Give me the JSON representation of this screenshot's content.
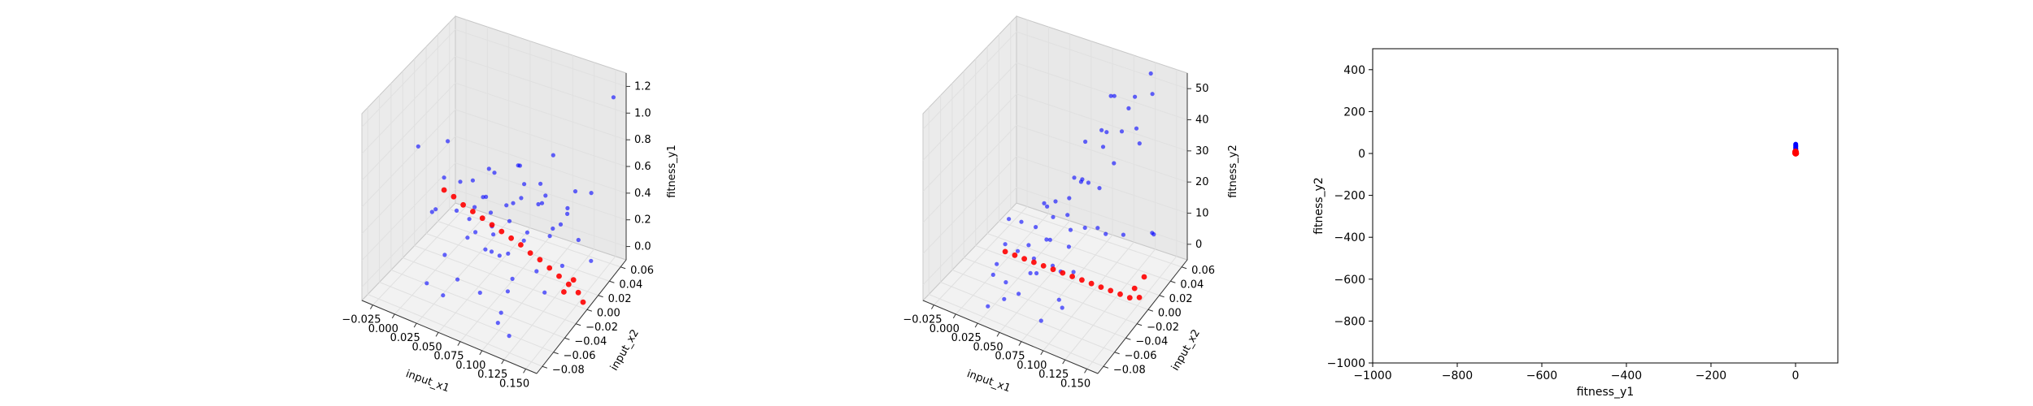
{
  "chart_data": [
    {
      "type": "scatter",
      "projection": "3d",
      "xlabel": "input_x1",
      "ylabel": "input_x2",
      "zlabel": "fitness_y1",
      "x_ticks": [
        "−0.025",
        "0.000",
        "0.025",
        "0.050",
        "0.075",
        "0.100",
        "0.125",
        "0.150"
      ],
      "y_ticks": [
        "−0.08",
        "−0.06",
        "−0.04",
        "−0.02",
        "0.00",
        "0.02",
        "0.04",
        "0.06"
      ],
      "z_ticks": [
        "0.0",
        "0.2",
        "0.4",
        "0.6",
        "0.8",
        "1.0",
        "1.2"
      ],
      "xlim": [
        -0.03,
        0.15
      ],
      "ylim": [
        -0.08,
        0.06
      ],
      "zlim": [
        0.0,
        1.2
      ],
      "grid": true,
      "series": [
        {
          "color": "#0000ff",
          "points": [
            [
              0.01,
              0.01,
              0.45
            ],
            [
              0.02,
              -0.01,
              0.38
            ],
            [
              0.03,
              0.02,
              0.35
            ],
            [
              0.04,
              -0.02,
              0.42
            ],
            [
              0.05,
              0.0,
              0.3
            ],
            [
              0.06,
              0.03,
              0.36
            ],
            [
              0.07,
              -0.03,
              0.33
            ],
            [
              0.08,
              0.01,
              0.28
            ],
            [
              0.09,
              -0.01,
              0.35
            ],
            [
              0.1,
              0.02,
              0.3
            ],
            [
              0.11,
              -0.02,
              0.25
            ],
            [
              0.12,
              0.03,
              0.22
            ],
            [
              0.015,
              -0.04,
              0.5
            ],
            [
              0.025,
              0.04,
              0.4
            ],
            [
              0.035,
              -0.05,
              0.32
            ],
            [
              0.045,
              0.05,
              0.44
            ],
            [
              0.055,
              -0.06,
              0.26
            ],
            [
              0.065,
              0.0,
              0.47
            ],
            [
              0.075,
              0.04,
              0.31
            ],
            [
              0.085,
              -0.04,
              0.39
            ],
            [
              0.095,
              0.05,
              0.27
            ],
            [
              0.105,
              -0.05,
              0.34
            ],
            [
              0.115,
              0.01,
              0.41
            ],
            [
              0.125,
              -0.03,
              0.2
            ],
            [
              0.03,
              0.0,
              0.55
            ],
            [
              0.05,
              -0.01,
              0.2
            ],
            [
              0.07,
              0.02,
              0.52
            ],
            [
              0.09,
              0.03,
              0.18
            ],
            [
              0.04,
              0.01,
              0.6
            ],
            [
              0.06,
              -0.04,
              0.48
            ],
            [
              0.08,
              0.05,
              0.58
            ],
            [
              0.1,
              -0.06,
              0.16
            ],
            [
              0.02,
              0.03,
              0.28
            ],
            [
              0.045,
              -0.03,
              0.36
            ],
            [
              0.065,
              0.06,
              0.24
            ],
            [
              0.085,
              -0.07,
              0.3
            ],
            [
              0.11,
              0.04,
              0.46
            ],
            [
              0.13,
              -0.01,
              0.28
            ],
            [
              0.14,
              0.02,
              0.18
            ],
            [
              0.0,
              0.0,
              0.5
            ],
            [
              -0.01,
              0.02,
              0.62
            ],
            [
              0.005,
              -0.02,
              0.4
            ],
            [
              0.06,
              0.01,
              0.1
            ],
            [
              0.08,
              -0.02,
              0.05
            ],
            [
              0.04,
              -0.06,
              0.12
            ],
            [
              0.12,
              0.05,
              0.42
            ],
            [
              0.03,
              -0.07,
              0.22
            ],
            [
              0.07,
              0.045,
              0.4
            ],
            [
              0.095,
              0.005,
              0.52
            ],
            [
              0.055,
              0.025,
              0.34
            ],
            [
              0.14,
              0.055,
              1.05
            ],
            [
              -0.02,
              -0.01,
              0.7
            ],
            [
              0.115,
              -0.07,
              0.1
            ],
            [
              0.09,
              -0.05,
              0.02
            ],
            [
              0.025,
              0.01,
              0.32
            ],
            [
              0.075,
              -0.01,
              0.44
            ],
            [
              0.05,
              0.04,
              0.5
            ],
            [
              0.105,
              0.035,
              0.33
            ],
            [
              0.035,
              0.02,
              0.26
            ],
            [
              0.065,
              -0.02,
              0.38
            ]
          ]
        },
        {
          "color": "#ff0000",
          "points": [
            [
              0.0,
              0.0,
              0.42
            ],
            [
              0.01,
              0.0,
              0.4
            ],
            [
              0.02,
              0.0,
              0.37
            ],
            [
              0.03,
              0.0,
              0.35
            ],
            [
              0.04,
              0.0,
              0.33
            ],
            [
              0.05,
              0.0,
              0.31
            ],
            [
              0.06,
              0.0,
              0.29
            ],
            [
              0.07,
              0.0,
              0.27
            ],
            [
              0.08,
              0.0,
              0.25
            ],
            [
              0.09,
              0.0,
              0.22
            ],
            [
              0.1,
              0.0,
              0.2
            ],
            [
              0.11,
              0.0,
              0.17
            ],
            [
              0.12,
              0.0,
              0.14
            ],
            [
              0.13,
              0.0,
              0.11
            ],
            [
              0.14,
              0.0,
              0.08
            ],
            [
              0.145,
              0.0,
              0.03
            ],
            [
              0.125,
              0.0,
              0.05
            ],
            [
              0.135,
              0.0,
              0.15
            ]
          ]
        }
      ]
    },
    {
      "type": "scatter",
      "projection": "3d",
      "xlabel": "input_x1",
      "ylabel": "input_x2",
      "zlabel": "fitness_y2",
      "x_ticks": [
        "−0.025",
        "0.000",
        "0.025",
        "0.050",
        "0.075",
        "0.100",
        "0.125",
        "0.150"
      ],
      "y_ticks": [
        "−0.08",
        "−0.06",
        "−0.04",
        "−0.02",
        "0.00",
        "0.02",
        "0.04",
        "0.06"
      ],
      "z_ticks": [
        "0",
        "10",
        "20",
        "30",
        "40",
        "50"
      ],
      "xlim": [
        -0.03,
        0.15
      ],
      "ylim": [
        -0.08,
        0.06
      ],
      "zlim": [
        0,
        50
      ],
      "grid": true,
      "series": [
        {
          "color": "#0000ff",
          "points": [
            [
              0.01,
              0.01,
              8
            ],
            [
              0.02,
              -0.01,
              5
            ],
            [
              0.03,
              0.02,
              12
            ],
            [
              0.04,
              -0.02,
              3
            ],
            [
              0.05,
              0.0,
              15
            ],
            [
              0.06,
              0.03,
              20
            ],
            [
              0.07,
              -0.03,
              10
            ],
            [
              0.08,
              0.01,
              25
            ],
            [
              0.09,
              -0.01,
              18
            ],
            [
              0.1,
              0.02,
              30
            ],
            [
              0.11,
              -0.02,
              22
            ],
            [
              0.12,
              0.03,
              35
            ],
            [
              0.015,
              -0.04,
              4
            ],
            [
              0.025,
              0.04,
              9
            ],
            [
              0.035,
              -0.05,
              6
            ],
            [
              0.045,
              0.05,
              14
            ],
            [
              0.055,
              -0.06,
              7
            ],
            [
              0.065,
              0.0,
              17
            ],
            [
              0.075,
              0.04,
              28
            ],
            [
              0.085,
              -0.04,
              12
            ],
            [
              0.095,
              0.05,
              38
            ],
            [
              0.105,
              -0.05,
              16
            ],
            [
              0.115,
              0.01,
              42
            ],
            [
              0.125,
              -0.03,
              24
            ],
            [
              0.03,
              0.0,
              2
            ],
            [
              0.05,
              -0.01,
              11
            ],
            [
              0.07,
              0.02,
              33
            ],
            [
              0.09,
              0.03,
              45
            ],
            [
              0.04,
              0.01,
              6
            ],
            [
              0.06,
              -0.04,
              9
            ],
            [
              0.08,
              0.05,
              40
            ],
            [
              0.1,
              -0.06,
              8
            ],
            [
              0.02,
              0.03,
              10
            ],
            [
              0.045,
              -0.03,
              13
            ],
            [
              0.065,
              0.06,
              27
            ],
            [
              0.085,
              -0.07,
              5
            ],
            [
              0.11,
              0.04,
              36
            ],
            [
              0.13,
              -0.01,
              20
            ],
            [
              0.14,
              0.02,
              15
            ],
            [
              0.0,
              0.0,
              3
            ],
            [
              -0.01,
              0.02,
              5
            ],
            [
              0.005,
              -0.02,
              2
            ],
            [
              0.06,
              0.01,
              19
            ],
            [
              0.08,
              -0.02,
              14
            ],
            [
              0.04,
              -0.06,
              4
            ],
            [
              0.12,
              0.05,
              44
            ],
            [
              0.03,
              -0.07,
              3
            ],
            [
              0.07,
              0.045,
              31
            ],
            [
              0.095,
              0.005,
              26
            ],
            [
              0.055,
              0.025,
              21
            ],
            [
              0.115,
              0.055,
              48
            ],
            [
              0.105,
              0.045,
              43
            ],
            [
              0.135,
              0.03,
              12
            ],
            [
              0.09,
              -0.05,
              7
            ],
            [
              0.025,
              0.01,
              8
            ],
            [
              0.075,
              -0.01,
              16
            ]
          ]
        },
        {
          "color": "#ff0000",
          "points": [
            [
              0.0,
              0.0,
              1
            ],
            [
              0.01,
              0.0,
              1
            ],
            [
              0.02,
              0.0,
              1
            ],
            [
              0.03,
              0.0,
              1
            ],
            [
              0.04,
              0.0,
              1
            ],
            [
              0.05,
              0.0,
              1
            ],
            [
              0.06,
              0.0,
              1
            ],
            [
              0.07,
              0.0,
              1
            ],
            [
              0.08,
              0.0,
              1
            ],
            [
              0.09,
              0.0,
              1
            ],
            [
              0.1,
              0.0,
              1
            ],
            [
              0.11,
              0.0,
              1
            ],
            [
              0.12,
              0.0,
              1
            ],
            [
              0.13,
              0.0,
              1
            ],
            [
              0.14,
              0.0,
              2
            ],
            [
              0.145,
              0.0,
              8
            ],
            [
              0.135,
              0.0,
              4
            ]
          ]
        }
      ]
    },
    {
      "type": "scatter",
      "xlabel": "fitness_y1",
      "ylabel": "fitness_y2",
      "xlim": [
        -1000,
        100
      ],
      "ylim": [
        -1000,
        500
      ],
      "x_ticks": [
        -1000,
        -800,
        -600,
        -400,
        -200,
        0
      ],
      "y_ticks": [
        -1000,
        -800,
        -600,
        -400,
        -200,
        0,
        200,
        400
      ],
      "grid": false,
      "series": [
        {
          "color": "#0000ff",
          "points": [
            [
              0.3,
              44
            ],
            [
              0.35,
              38
            ],
            [
              0.4,
              30
            ],
            [
              0.45,
              25
            ],
            [
              0.5,
              20
            ],
            [
              0.4,
              15
            ],
            [
              0.3,
              10
            ],
            [
              0.5,
              35
            ]
          ]
        },
        {
          "color": "#ff0000",
          "points": [
            [
              0.3,
              1
            ],
            [
              0.35,
              1
            ],
            [
              0.4,
              1
            ],
            [
              0.2,
              2
            ],
            [
              0.1,
              4
            ],
            [
              0.05,
              8
            ]
          ]
        }
      ]
    }
  ]
}
